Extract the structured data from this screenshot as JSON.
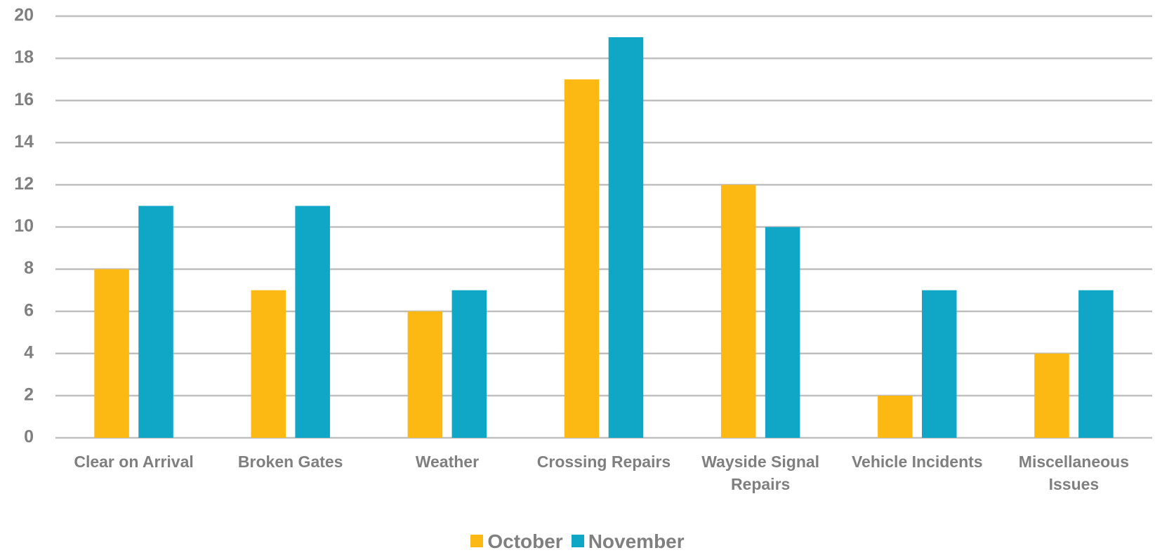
{
  "chart_data": {
    "type": "bar",
    "categories": [
      "Clear on Arrival",
      "Broken Gates",
      "Weather",
      "Crossing Repairs",
      "Wayside Signal Repairs",
      "Vehicle Incidents",
      "Miscellaneous Issues"
    ],
    "series": [
      {
        "name": "October",
        "color": "#fdb913",
        "values": [
          8,
          7,
          6,
          17,
          12,
          2,
          4
        ]
      },
      {
        "name": "November",
        "color": "#10a6c6",
        "values": [
          11,
          11,
          7,
          19,
          10,
          7,
          7
        ]
      }
    ],
    "ylim": [
      0,
      20
    ],
    "yticks": [
      0,
      2,
      4,
      6,
      8,
      10,
      12,
      14,
      16,
      18,
      20
    ],
    "grid": true,
    "legend": "bottom"
  }
}
